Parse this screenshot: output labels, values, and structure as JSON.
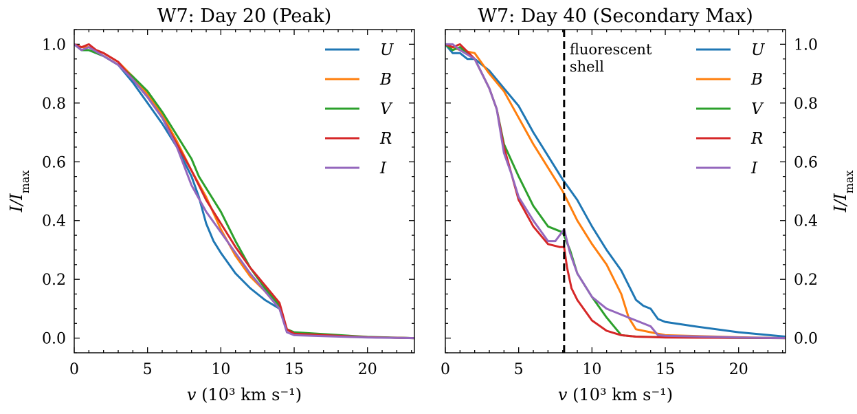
{
  "chart_data": [
    {
      "type": "line",
      "title": "W7: Day 20 (Peak)",
      "xlabel": "v (10³ km s⁻¹)",
      "ylabel": "I/I_max",
      "xlim": [
        0,
        23.2
      ],
      "ylim": [
        -0.05,
        1.05
      ],
      "xticks": [
        "0",
        "5",
        "10",
        "15",
        "20"
      ],
      "yticks": [
        "0.0",
        "0.2",
        "0.4",
        "0.6",
        "0.8",
        "1.0"
      ],
      "yaxis_side": "left",
      "legend": "top-right",
      "grid": false,
      "series": [
        {
          "name": "U",
          "color": "#1f77b4",
          "x": [
            0,
            0.5,
            1,
            2,
            3,
            4,
            5,
            6,
            7,
            8,
            8.5,
            9,
            9.5,
            10,
            11,
            12,
            13,
            14,
            14.5,
            15,
            20,
            23.2
          ],
          "y": [
            1.0,
            0.98,
            0.98,
            0.96,
            0.93,
            0.87,
            0.8,
            0.73,
            0.65,
            0.55,
            0.48,
            0.39,
            0.33,
            0.29,
            0.22,
            0.17,
            0.13,
            0.1,
            0.03,
            0.015,
            0.003,
            0.0
          ]
        },
        {
          "name": "B",
          "color": "#ff7f0e",
          "x": [
            0,
            0.5,
            1,
            2,
            3,
            4,
            5,
            6,
            7,
            8,
            9,
            10,
            11,
            12,
            13,
            14,
            14.5,
            15,
            20,
            23.2
          ],
          "y": [
            1.0,
            0.99,
            0.99,
            0.97,
            0.94,
            0.89,
            0.83,
            0.76,
            0.67,
            0.57,
            0.48,
            0.37,
            0.28,
            0.21,
            0.16,
            0.1,
            0.03,
            0.015,
            0.003,
            0.0
          ]
        },
        {
          "name": "V",
          "color": "#2ca02c",
          "x": [
            0,
            0.5,
            1,
            2,
            3,
            4,
            5,
            6,
            7,
            8,
            8.5,
            9,
            10,
            11,
            12,
            13,
            14,
            14.5,
            15,
            20,
            23.2
          ],
          "y": [
            1.0,
            0.98,
            0.98,
            0.96,
            0.93,
            0.89,
            0.84,
            0.77,
            0.69,
            0.61,
            0.55,
            0.51,
            0.43,
            0.33,
            0.24,
            0.17,
            0.11,
            0.03,
            0.02,
            0.004,
            0.0
          ]
        },
        {
          "name": "R",
          "color": "#d62728",
          "x": [
            0,
            0.5,
            1,
            1.5,
            2,
            3,
            4,
            5,
            6,
            7,
            8,
            8.5,
            9,
            10,
            11,
            12,
            13,
            14,
            14.5,
            15,
            20,
            23.2
          ],
          "y": [
            1.0,
            0.99,
            1.0,
            0.98,
            0.97,
            0.94,
            0.88,
            0.82,
            0.75,
            0.66,
            0.57,
            0.52,
            0.47,
            0.39,
            0.31,
            0.24,
            0.18,
            0.12,
            0.03,
            0.015,
            0.003,
            0.0
          ]
        },
        {
          "name": "I",
          "color": "#9467bd",
          "x": [
            0,
            0.5,
            1,
            2,
            3,
            4,
            5,
            6,
            7,
            8,
            9,
            10,
            11,
            12,
            13,
            14,
            14.5,
            15,
            20,
            23.2
          ],
          "y": [
            1.0,
            0.98,
            0.99,
            0.96,
            0.93,
            0.88,
            0.82,
            0.75,
            0.65,
            0.52,
            0.43,
            0.36,
            0.29,
            0.22,
            0.16,
            0.1,
            0.02,
            0.01,
            0.002,
            0.0
          ]
        }
      ]
    },
    {
      "type": "line",
      "title": "W7: Day 40 (Secondary Max)",
      "xlabel": "v (10³ km s⁻¹)",
      "ylabel": "I/I_max",
      "xlim": [
        0,
        23.2
      ],
      "ylim": [
        -0.05,
        1.05
      ],
      "xticks": [
        "0",
        "5",
        "10",
        "15",
        "20"
      ],
      "yticks": [
        "0.0",
        "0.2",
        "0.4",
        "0.6",
        "0.8",
        "1.0"
      ],
      "yaxis_side": "right",
      "legend": "top-right",
      "grid": false,
      "vline": {
        "x": 8.1,
        "label_lines": [
          "fluorescent",
          "shell"
        ]
      },
      "series": [
        {
          "name": "U",
          "color": "#1f77b4",
          "x": [
            0,
            0.5,
            1,
            1.5,
            2,
            3,
            4,
            5,
            6,
            7,
            8,
            9,
            10,
            11,
            12,
            13,
            13.5,
            14,
            14.5,
            15,
            17,
            20,
            23.2
          ],
          "y": [
            1.0,
            0.97,
            0.97,
            0.95,
            0.95,
            0.91,
            0.85,
            0.79,
            0.7,
            0.62,
            0.54,
            0.47,
            0.38,
            0.3,
            0.23,
            0.13,
            0.11,
            0.1,
            0.065,
            0.055,
            0.04,
            0.02,
            0.005
          ]
        },
        {
          "name": "B",
          "color": "#ff7f0e",
          "x": [
            0,
            1,
            2,
            3,
            4,
            5,
            6,
            7,
            8,
            9,
            10,
            11,
            12,
            12.5,
            13,
            14,
            15,
            20,
            23.2
          ],
          "y": [
            1.0,
            0.98,
            0.97,
            0.9,
            0.84,
            0.75,
            0.66,
            0.58,
            0.5,
            0.4,
            0.32,
            0.25,
            0.15,
            0.07,
            0.03,
            0.02,
            0.01,
            0.003,
            0.0
          ]
        },
        {
          "name": "V",
          "color": "#2ca02c",
          "x": [
            0,
            0.5,
            1,
            2,
            3,
            3.5,
            4,
            5,
            6,
            7,
            8,
            8.5,
            9,
            10,
            11,
            12,
            13,
            15,
            20,
            23.2
          ],
          "y": [
            1.0,
            0.98,
            0.99,
            0.95,
            0.85,
            0.78,
            0.66,
            0.55,
            0.45,
            0.38,
            0.36,
            0.3,
            0.22,
            0.14,
            0.07,
            0.01,
            0.005,
            0.003,
            0.001,
            0.0
          ]
        },
        {
          "name": "R",
          "color": "#d62728",
          "x": [
            0,
            0.5,
            1,
            2,
            3,
            3.5,
            4,
            5,
            6,
            7,
            7.8,
            8.1,
            8.3,
            8.6,
            9,
            10,
            11,
            12,
            13,
            15,
            20,
            23.2
          ],
          "y": [
            1.0,
            0.99,
            1.0,
            0.95,
            0.85,
            0.78,
            0.65,
            0.47,
            0.38,
            0.32,
            0.31,
            0.31,
            0.24,
            0.17,
            0.13,
            0.06,
            0.025,
            0.01,
            0.005,
            0.002,
            0.001,
            0.0
          ]
        },
        {
          "name": "I",
          "color": "#9467bd",
          "x": [
            0,
            0.5,
            1,
            2,
            3,
            3.5,
            4,
            4.5,
            5,
            6,
            7,
            7.5,
            8.1,
            8.5,
            9,
            10,
            11,
            12,
            13,
            14,
            14.5,
            15,
            20,
            23.2
          ],
          "y": [
            1.0,
            1.0,
            0.98,
            0.95,
            0.85,
            0.78,
            0.63,
            0.56,
            0.48,
            0.4,
            0.33,
            0.33,
            0.37,
            0.29,
            0.22,
            0.14,
            0.1,
            0.08,
            0.06,
            0.04,
            0.01,
            0.008,
            0.002,
            0.0
          ]
        }
      ]
    }
  ]
}
